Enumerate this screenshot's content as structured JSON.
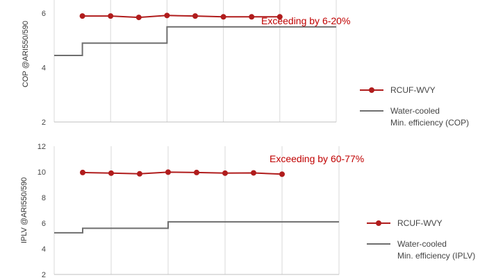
{
  "chart_data": [
    {
      "type": "line",
      "ylabel": "COP @ARI550/590",
      "ylim": [
        2,
        7
      ],
      "yticks": [
        2,
        4,
        6
      ],
      "xlim": [
        0,
        10
      ],
      "grid": "vertical",
      "annotation": "Exceeding by 6-20%",
      "legend_position": "right",
      "legend_colors": [
        "#b01c1c",
        "#6e6e6e"
      ],
      "series": [
        {
          "name": "RCUF-WVY",
          "color": "#b01c1c",
          "style": "line-markers",
          "x": [
            1,
            2,
            3,
            4,
            5,
            6,
            7,
            8
          ],
          "y": [
            5.9,
            5.9,
            5.85,
            5.92,
            5.9,
            5.87,
            5.87,
            5.87
          ]
        },
        {
          "name": "Water-cooled Min. efficiency (COP)",
          "color": "#6e6e6e",
          "style": "step",
          "x": [
            0,
            1,
            1,
            4,
            4,
            10
          ],
          "y": [
            4.45,
            4.45,
            4.9,
            4.9,
            5.5,
            5.5
          ]
        }
      ],
      "legend": [
        {
          "lines": [
            "RCUF-WVY"
          ]
        },
        {
          "lines": [
            "Water-cooled",
            "Min. efficiency (COP)"
          ]
        }
      ]
    },
    {
      "type": "line",
      "ylabel": "IPLV @ARI550/590",
      "ylim": [
        2,
        12
      ],
      "yticks": [
        2,
        4,
        6,
        8,
        10,
        12
      ],
      "xlim": [
        0,
        10
      ],
      "grid": "vertical",
      "annotation": "Exceeding by 60-77%",
      "legend_position": "right",
      "legend_colors": [
        "#b01c1c",
        "#6e6e6e"
      ],
      "series": [
        {
          "name": "RCUF-WVY",
          "color": "#b01c1c",
          "style": "line-markers",
          "x": [
            1,
            2,
            3,
            4,
            5,
            6,
            7,
            8
          ],
          "y": [
            9.95,
            9.9,
            9.85,
            9.98,
            9.95,
            9.9,
            9.92,
            9.82
          ]
        },
        {
          "name": "Water-cooled Min. efficiency (IPLV)",
          "color": "#6e6e6e",
          "style": "step",
          "x": [
            0,
            1,
            1,
            4,
            4,
            10
          ],
          "y": [
            5.25,
            5.25,
            5.6,
            5.6,
            6.1,
            6.1
          ]
        }
      ],
      "legend": [
        {
          "lines": [
            "RCUF-WVY"
          ]
        },
        {
          "lines": [
            "Water-cooled",
            "Min. efficiency (IPLV)"
          ]
        }
      ]
    }
  ]
}
